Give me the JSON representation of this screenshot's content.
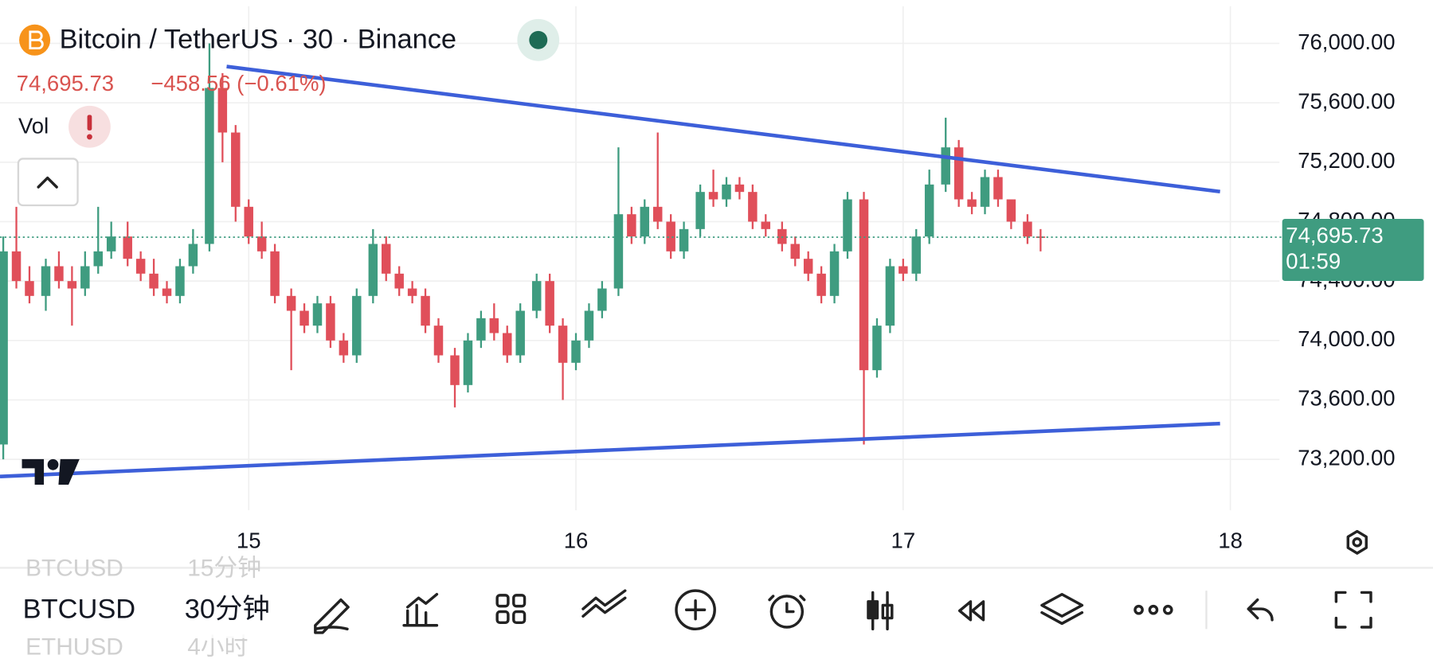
{
  "header": {
    "title": "Bitcoin / TetherUS · 30 · Binance",
    "price": "74,695.73",
    "change": "−458.56 (−0.61%)",
    "indicator": "Vol"
  },
  "chart_data": {
    "type": "candlestick",
    "up_color": "#3f9c80",
    "down_color": "#e04f5a",
    "grid": true,
    "xlim": [
      14.24,
      18.15
    ],
    "xticks": [
      15,
      16,
      17,
      18
    ],
    "ylim": [
      72900,
      76250
    ],
    "yticks": [
      {
        "value": 73200,
        "label": "73,200.00"
      },
      {
        "value": 73600,
        "label": "73,600.00"
      },
      {
        "value": 74000,
        "label": "74,000.00"
      },
      {
        "value": 74400,
        "label": "74,400.00"
      },
      {
        "value": 74800,
        "label": "74,800.00"
      },
      {
        "value": 75200,
        "label": "75,200.00"
      },
      {
        "value": 75600,
        "label": "75,600.00"
      },
      {
        "value": 76000,
        "label": "76,000.00"
      }
    ],
    "last_price": {
      "value": 74695.73,
      "label": "74,695.73"
    },
    "countdown": "01:59",
    "x": [
      14.25,
      14.29,
      14.33,
      14.38,
      14.42,
      14.46,
      14.5,
      14.54,
      14.58,
      14.63,
      14.67,
      14.71,
      14.75,
      14.79,
      14.83,
      14.88,
      14.92,
      14.96,
      15,
      15.04,
      15.08,
      15.13,
      15.17,
      15.21,
      15.25,
      15.29,
      15.33,
      15.38,
      15.42,
      15.46,
      15.5,
      15.54,
      15.58,
      15.63,
      15.67,
      15.71,
      15.75,
      15.79,
      15.83,
      15.88,
      15.92,
      15.96,
      16,
      16.04,
      16.08,
      16.13,
      16.17,
      16.21,
      16.25,
      16.29,
      16.33,
      16.38,
      16.42,
      16.46,
      16.5,
      16.54,
      16.58,
      16.63,
      16.67,
      16.71,
      16.75,
      16.79,
      16.83,
      16.88,
      16.92,
      16.96,
      17,
      17.04,
      17.08,
      17.13,
      17.17,
      17.21,
      17.25,
      17.29,
      17.33,
      17.38,
      17.42
    ],
    "open": [
      73300,
      74600,
      74400,
      74300,
      74500,
      74400,
      74350,
      74500,
      74600,
      74700,
      74550,
      74450,
      74350,
      74300,
      74500,
      74650,
      75700,
      75400,
      74900,
      74700,
      74600,
      74300,
      74200,
      74100,
      74250,
      74000,
      73900,
      74300,
      74650,
      74450,
      74350,
      74300,
      74100,
      73900,
      73700,
      74000,
      74150,
      74050,
      73900,
      74200,
      74400,
      74100,
      73850,
      74000,
      74200,
      74350,
      74850,
      74700,
      74900,
      74800,
      74600,
      74750,
      75000,
      74950,
      75050,
      75000,
      74800,
      74750,
      74650,
      74550,
      74450,
      74300,
      74600,
      74950,
      73800,
      74100,
      74500,
      74450,
      74700,
      75050,
      75300,
      74950,
      74900,
      75100,
      74950,
      74800,
      74700
    ],
    "high": [
      74700,
      74900,
      74500,
      74550,
      74600,
      74500,
      74600,
      74900,
      74800,
      74800,
      74600,
      74550,
      74400,
      74550,
      74750,
      76000,
      75800,
      75450,
      74950,
      74800,
      74650,
      74350,
      74250,
      74300,
      74300,
      74050,
      74350,
      74750,
      74700,
      74500,
      74400,
      74350,
      74150,
      73950,
      74050,
      74200,
      74250,
      74100,
      74250,
      74450,
      74450,
      74150,
      74050,
      74250,
      74400,
      75300,
      74900,
      74950,
      75400,
      74850,
      74800,
      75050,
      75150,
      75100,
      75100,
      75050,
      74850,
      74800,
      74700,
      74600,
      74500,
      74650,
      75000,
      75000,
      74150,
      74550,
      74550,
      74750,
      75150,
      75500,
      75350,
      75000,
      75150,
      75150,
      74950,
      74850,
      74750
    ],
    "low": [
      73200,
      74350,
      74250,
      74200,
      74350,
      74100,
      74300,
      74450,
      74550,
      74500,
      74400,
      74300,
      74250,
      74250,
      74450,
      74600,
      75200,
      74800,
      74650,
      74550,
      74250,
      73800,
      74050,
      74050,
      73950,
      73850,
      73850,
      74250,
      74400,
      74300,
      74250,
      74050,
      73850,
      73550,
      73650,
      73950,
      74000,
      73850,
      73850,
      74150,
      74050,
      73600,
      73800,
      73950,
      74150,
      74300,
      74650,
      74650,
      74750,
      74550,
      74550,
      74700,
      74900,
      74900,
      74950,
      74750,
      74700,
      74600,
      74500,
      74400,
      74250,
      74250,
      74550,
      73300,
      73750,
      74050,
      74400,
      74400,
      74650,
      75000,
      74900,
      74850,
      74850,
      74900,
      74750,
      74650,
      74600
    ],
    "close": [
      74600,
      74400,
      74300,
      74500,
      74400,
      74350,
      74500,
      74600,
      74700,
      74550,
      74450,
      74350,
      74300,
      74500,
      74650,
      75700,
      75400,
      74900,
      74700,
      74600,
      74300,
      74200,
      74100,
      74250,
      74000,
      73900,
      74300,
      74650,
      74450,
      74350,
      74300,
      74100,
      73900,
      73700,
      74000,
      74150,
      74050,
      73900,
      74200,
      74400,
      74100,
      73850,
      74000,
      74200,
      74350,
      74850,
      74700,
      74900,
      74800,
      74600,
      74750,
      75000,
      74950,
      75050,
      75000,
      74800,
      74750,
      74650,
      74550,
      74450,
      74300,
      74600,
      74950,
      73800,
      74100,
      74500,
      74450,
      74700,
      75050,
      75300,
      74950,
      74900,
      75100,
      74950,
      74800,
      74700,
      74695.73
    ]
  },
  "toolbar": {
    "symbol": "BTCUSD",
    "interval": "30分钟",
    "ghost_above": [
      "BTCUSD",
      "15分钟"
    ],
    "ghost_below": [
      "ETHUSD",
      "4小时"
    ]
  }
}
